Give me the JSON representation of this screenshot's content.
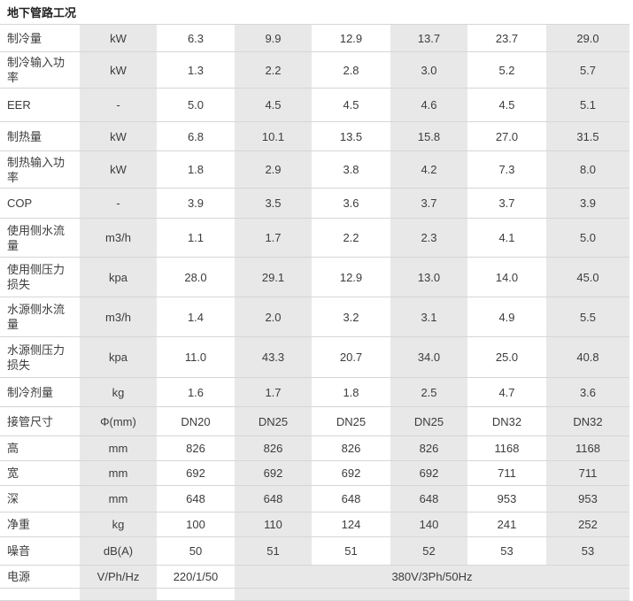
{
  "title": "地下管路工况",
  "colors": {
    "row_shade": "#e8e8e8",
    "border": "#d6d6d6",
    "text": "#3c3c3c"
  },
  "table": {
    "rows": [
      {
        "label": "制冷量",
        "unit": "kW",
        "values": [
          "6.3",
          "9.9",
          "12.9",
          "13.7",
          "23.7",
          "29.0"
        ]
      },
      {
        "label": "制冷输入功率",
        "unit": "kW",
        "values": [
          "1.3",
          "2.2",
          "2.8",
          "3.0",
          "5.2",
          "5.7"
        ]
      },
      {
        "label": "EER",
        "unit": "-",
        "values": [
          "5.0",
          "4.5",
          "4.5",
          "4.6",
          "4.5",
          "5.1"
        ]
      },
      {
        "label": "制热量",
        "unit": "kW",
        "values": [
          "6.8",
          "10.1",
          "13.5",
          "15.8",
          "27.0",
          "31.5"
        ]
      },
      {
        "label": "制热输入功率",
        "unit": "kW",
        "values": [
          "1.8",
          "2.9",
          "3.8",
          "4.2",
          "7.3",
          "8.0"
        ]
      },
      {
        "label": "COP",
        "unit": "-",
        "values": [
          "3.9",
          "3.5",
          "3.6",
          "3.7",
          "3.7",
          "3.9"
        ]
      },
      {
        "label": "使用侧水流量",
        "unit": "m3/h",
        "values": [
          "1.1",
          "1.7",
          "2.2",
          "2.3",
          "4.1",
          "5.0"
        ]
      },
      {
        "label": "使用侧压力损失",
        "unit": "kpa",
        "values": [
          "28.0",
          "29.1",
          "12.9",
          "13.0",
          "14.0",
          "45.0"
        ]
      },
      {
        "label": "水源侧水流量",
        "unit": "m3/h",
        "values": [
          "1.4",
          "2.0",
          "3.2",
          "3.1",
          "4.9",
          "5.5"
        ]
      },
      {
        "label": "水源侧压力损失",
        "unit": "kpa",
        "values": [
          "11.0",
          "43.3",
          "20.7",
          "34.0",
          "25.0",
          "40.8"
        ]
      },
      {
        "label": "制冷剂量",
        "unit": "kg",
        "values": [
          "1.6",
          "1.7",
          "1.8",
          "2.5",
          "4.7",
          "3.6"
        ]
      },
      {
        "label": "接管尺寸",
        "unit": "Φ(mm)",
        "values": [
          "DN20",
          "DN25",
          "DN25",
          "DN25",
          "DN32",
          "DN32"
        ]
      },
      {
        "label": "高",
        "unit": "mm",
        "values": [
          "826",
          "826",
          "826",
          "826",
          "1168",
          "1168"
        ]
      },
      {
        "label": "宽",
        "unit": "mm",
        "values": [
          "692",
          "692",
          "692",
          "692",
          "711",
          "711"
        ]
      },
      {
        "label": "深",
        "unit": "mm",
        "values": [
          "648",
          "648",
          "648",
          "648",
          "953",
          "953"
        ]
      },
      {
        "label": "净重",
        "unit": "kg",
        "values": [
          "100",
          "110",
          "124",
          "140",
          "241",
          "252"
        ]
      },
      {
        "label": "噪音",
        "unit": "dB(A)",
        "values": [
          "50",
          "51",
          "51",
          "52",
          "53",
          "53"
        ]
      },
      {
        "label": "电源",
        "unit": "V/Ph/Hz",
        "values": [
          "220/1/50"
        ],
        "merged_value": "380V/3Ph/50Hz"
      }
    ]
  }
}
